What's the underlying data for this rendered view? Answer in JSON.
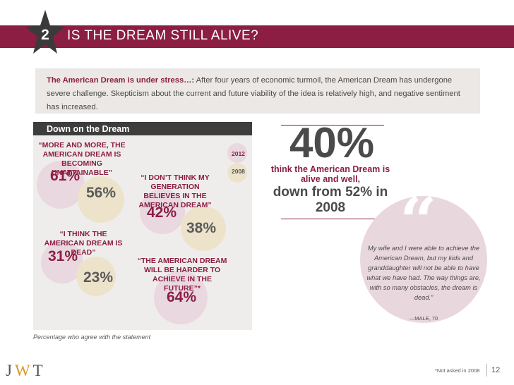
{
  "header": {
    "slide_number": "2",
    "title": "IS THE DREAM STILL ALIVE?",
    "accent_color": "#8c1d43"
  },
  "intro": {
    "lead": "The American Dream is under stress…:",
    "body": " After four years of economic turmoil, the American Dream has undergone severe challenge. Skepticism about the current and future viability of the idea is relatively high, and negative sentiment has increased."
  },
  "panel": {
    "title": "Down on the Dream",
    "legend": [
      "2012",
      "2008"
    ],
    "footnote": "Percentage who agree with the statement",
    "statements": [
      {
        "quote": "“MORE AND MORE, THE AMERICAN DREAM IS BECOMING UNATTAINABLE”",
        "value_2012": "61%",
        "value_2008": "56%"
      },
      {
        "quote": "“I DON’T THINK MY GENERATION BELIEVES IN THE AMERICAN DREAM”",
        "value_2012": "42%",
        "value_2008": "38%"
      },
      {
        "quote": "“I THINK THE AMERICAN DREAM IS DEAD”",
        "value_2012": "31%",
        "value_2008": "23%"
      },
      {
        "quote": "“THE AMERICAN DREAM WILL BE HARDER TO ACHIEVE IN THE FUTURE”*",
        "value_2012": "64%"
      }
    ]
  },
  "stat": {
    "value": "40%",
    "line1": "think the American Dream is alive and well,",
    "line2": "down from 52% in 2008"
  },
  "testimonial": {
    "text": "My wife and I were able to achieve the American Dream, but my kids and granddaughter will not be able to have what we have had. The way things are, with so many obstacles, the dream is dead.”",
    "source": "—MALE, 70"
  },
  "footer": {
    "logo_letters": [
      "J",
      "W",
      "T"
    ],
    "note": "*Not asked in 2008",
    "page": "12"
  }
}
